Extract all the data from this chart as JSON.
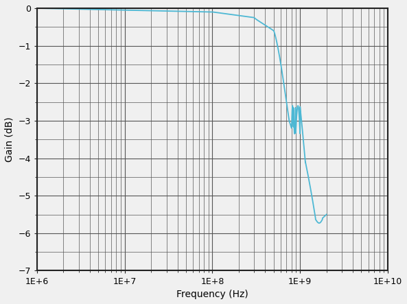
{
  "xlabel": "Frequency (Hz)",
  "ylabel": "Gain (dB)",
  "xlim": [
    1000000.0,
    10000000000.0
  ],
  "ylim": [
    -7,
    0
  ],
  "yticks": [
    0,
    -1,
    -2,
    -3,
    -4,
    -5,
    -6,
    -7
  ],
  "line_color": "#4db8d4",
  "line_width": 1.3,
  "bg_color": "#f0f0f0",
  "grid_color": "#555555",
  "spine_color": "#222222"
}
